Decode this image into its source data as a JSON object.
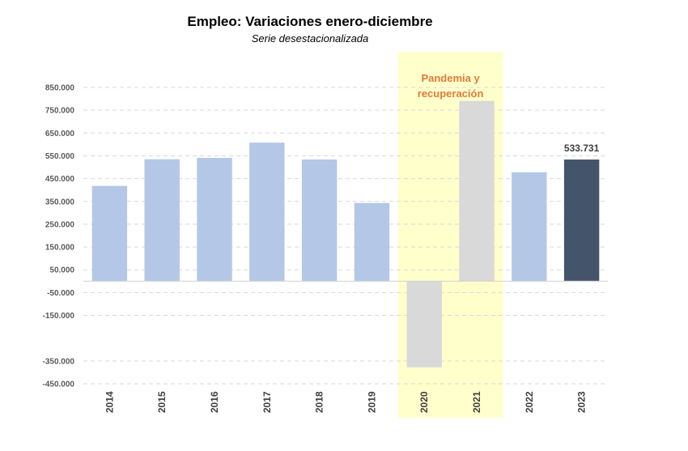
{
  "chart_data": {
    "type": "bar",
    "title": "Empleo: Variaciones enero-diciembre",
    "subtitle": "Serie desestacionalizada",
    "xlabel": "",
    "ylabel": "",
    "categories": [
      "2014",
      "2015",
      "2016",
      "2017",
      "2018",
      "2019",
      "2020",
      "2021",
      "2022",
      "2023"
    ],
    "values": [
      418000,
      535000,
      541000,
      608000,
      534000,
      343000,
      -378000,
      791000,
      478000,
      533731
    ],
    "ylim": [
      -450000,
      850000
    ],
    "yticks": [
      850000,
      750000,
      650000,
      550000,
      450000,
      350000,
      250000,
      150000,
      50000,
      -50000,
      -150000,
      -350000,
      -450000
    ],
    "ytick_labels": [
      "850.000",
      "750.000",
      "650.000",
      "550.000",
      "450.000",
      "350.000",
      "250.000",
      "150.000",
      "50.000",
      "-50.000",
      "-150.000",
      "-350.000",
      "-450.000"
    ],
    "grid": true,
    "legend": "none",
    "colors": {
      "default": "#B4C7E7",
      "pandemic": "#D9D9D9",
      "latest": "#44546A",
      "highlight_band": "#FFFFCC",
      "highlight_text": "#E07B39",
      "gridline": "#D9D9D9"
    },
    "bar_colors": [
      "default",
      "default",
      "default",
      "default",
      "default",
      "default",
      "pandemic",
      "pandemic",
      "default",
      "latest"
    ],
    "data_labels": [
      {
        "category": "2023",
        "text": "533.731"
      }
    ],
    "annotations": [
      {
        "text_lines": [
          "Pandemia y",
          "recuperación"
        ],
        "span_categories": [
          "2020",
          "2021"
        ]
      }
    ]
  }
}
